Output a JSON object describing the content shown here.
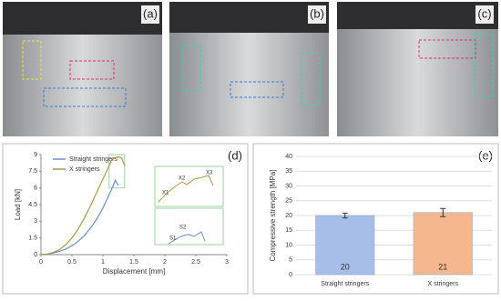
{
  "panels": [
    "(a)",
    "(b)",
    "(c)"
  ],
  "chart_data": [
    {
      "type": "line",
      "panel_label": "(d)",
      "x_label": "Displacement [mm]",
      "y_label": "Load [kN]",
      "x": [
        0,
        0.1,
        0.2,
        0.3,
        0.4,
        0.5,
        0.6,
        0.7,
        0.8,
        0.9,
        1.0,
        1.1,
        1.15,
        1.2,
        1.25,
        1.3,
        1.35
      ],
      "series": [
        {
          "name": "Straight stringers",
          "color": "#6a8fd0",
          "values": [
            0,
            0.05,
            0.15,
            0.3,
            0.5,
            0.8,
            1.2,
            1.7,
            2.4,
            3.2,
            4.2,
            5.4,
            6.0,
            6.7,
            6.2,
            null,
            null
          ]
        },
        {
          "name": "X stringers",
          "color": "#a8994a",
          "values": [
            0,
            0.05,
            0.2,
            0.45,
            0.9,
            1.5,
            2.3,
            3.3,
            4.4,
            5.6,
            6.8,
            8.0,
            8.6,
            8.7,
            8.8,
            8.7,
            8.0
          ]
        }
      ],
      "xlim": [
        0,
        3
      ],
      "xticks": [
        0,
        0.5,
        1,
        1.5,
        2,
        2.5,
        3
      ],
      "ylim": [
        0,
        9
      ],
      "yticks": [
        0,
        1.5,
        3,
        4.5,
        6,
        7.5,
        9
      ],
      "annotations": [
        "X1",
        "X2",
        "X3",
        "S1",
        "S2"
      ]
    },
    {
      "type": "bar",
      "panel_label": "(e)",
      "y_label": "Compressive strength  [MPa]",
      "categories": [
        "Straight stringers",
        "X stringers"
      ],
      "values": [
        20,
        21
      ],
      "errors": [
        0.8,
        1.4
      ],
      "colors": [
        "#a7bfe8",
        "#f4b78e"
      ],
      "ylim": [
        0,
        40
      ],
      "yticks": [
        0,
        5,
        10,
        15,
        20,
        25,
        30,
        35,
        40
      ],
      "grid": true
    }
  ]
}
